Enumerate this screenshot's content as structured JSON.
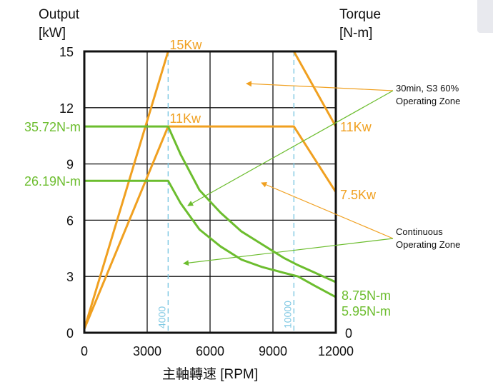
{
  "chart_data": {
    "type": "line",
    "xlabel": "主軸轉速 [RPM]",
    "ylabel_left": [
      "Output",
      "[kW]"
    ],
    "ylabel_right": [
      "Torque",
      "[N-m]"
    ],
    "xlim": [
      0,
      12000
    ],
    "ylim": [
      0,
      15
    ],
    "x_ticks": [
      0,
      3000,
      6000,
      9000,
      12000
    ],
    "y_ticks": [
      0,
      3,
      6,
      9,
      12,
      15
    ],
    "grid": true,
    "series": [
      {
        "name": "30min, S3 60% Operating Zone",
        "kind": "output",
        "color": "#f0a020",
        "points": [
          [
            0,
            0.2
          ],
          [
            4000,
            15
          ],
          [
            10000,
            15
          ],
          [
            12000,
            11
          ]
        ],
        "label": "15Kw",
        "end_label": "11Kw"
      },
      {
        "name": "Continuous Operating Zone",
        "kind": "output",
        "color": "#f0a020",
        "points": [
          [
            0,
            0.2
          ],
          [
            4000,
            11
          ],
          [
            10000,
            11
          ],
          [
            12000,
            7.5
          ]
        ],
        "label": "11Kw",
        "end_label": "7.5Kw"
      },
      {
        "name": "30min, S3 60% Operating Zone",
        "kind": "torque",
        "color": "#6cbd2e",
        "points": [
          [
            0,
            11.0
          ],
          [
            4000,
            11.0
          ],
          [
            4600,
            9.5
          ],
          [
            5500,
            7.6
          ],
          [
            6500,
            6.4
          ],
          [
            7500,
            5.4
          ],
          [
            8500,
            4.7
          ],
          [
            9500,
            4.0
          ],
          [
            10200,
            3.6
          ],
          [
            11000,
            3.2
          ],
          [
            12000,
            2.7
          ]
        ],
        "label": "35.72N-m",
        "end_label": "8.75N-m"
      },
      {
        "name": "Continuous Operating Zone",
        "kind": "torque",
        "color": "#6cbd2e",
        "points": [
          [
            0,
            8.1
          ],
          [
            4000,
            8.1
          ],
          [
            4600,
            6.9
          ],
          [
            5500,
            5.5
          ],
          [
            6500,
            4.6
          ],
          [
            7500,
            3.9
          ],
          [
            8500,
            3.5
          ],
          [
            9500,
            3.2
          ],
          [
            10200,
            3.0
          ],
          [
            11000,
            2.5
          ],
          [
            12000,
            1.9
          ]
        ],
        "label": "26.19N-m",
        "end_label": "5.95N-m"
      }
    ],
    "vlines": [
      {
        "x": 4000,
        "label": "4000",
        "color": "#7ec8e3"
      },
      {
        "x": 10000,
        "label": "10000",
        "color": "#7ec8e3"
      }
    ],
    "right_axis_zero": "0",
    "annotations": [
      {
        "text": [
          "30min, S3 60%",
          "Operating Zone"
        ],
        "color": "#f0a020"
      },
      {
        "text": [
          "Continuous",
          "Operating Zone"
        ],
        "color": "#f0a020"
      }
    ]
  }
}
